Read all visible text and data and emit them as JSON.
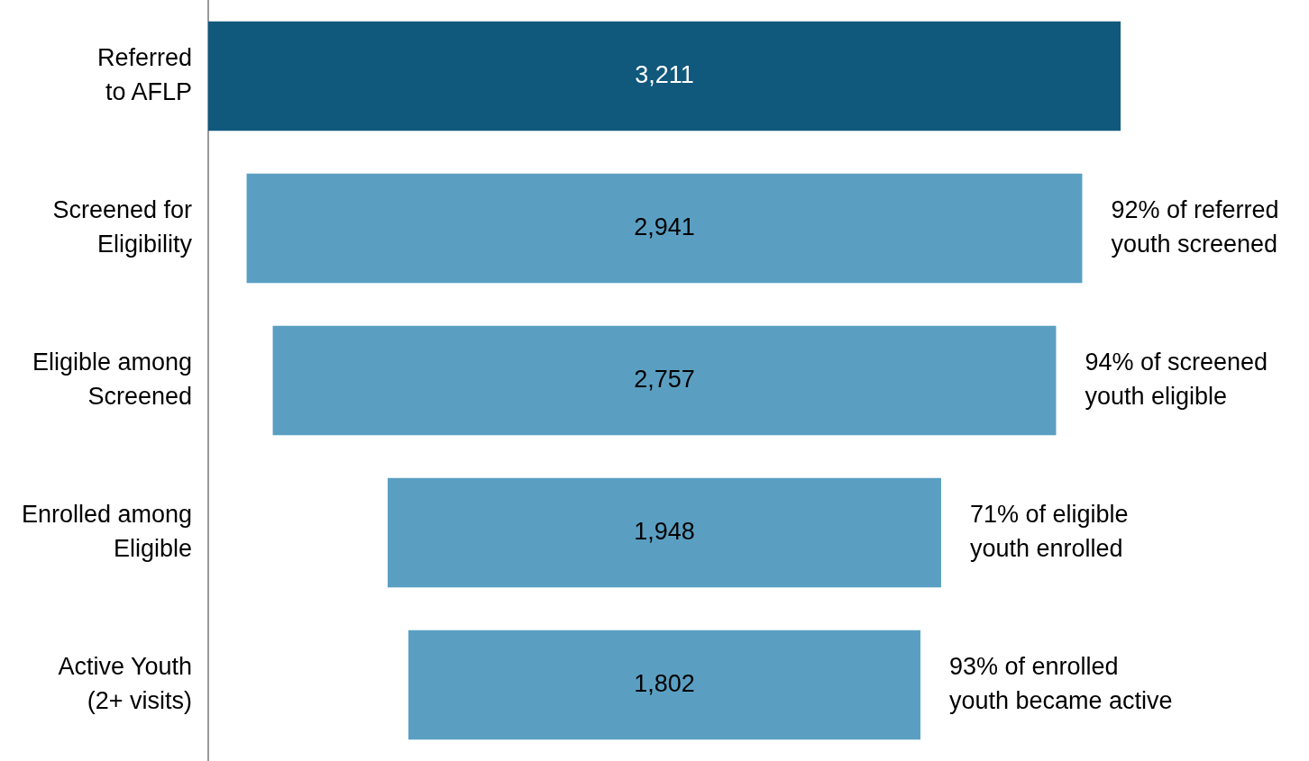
{
  "chart_data": {
    "type": "other",
    "categories": [
      "Referred\nto AFLP",
      "Screened for\nEligibility",
      "Eligible among\nScreened",
      "Enrolled among\nEligible",
      "Active Youth\n(2+ visits)"
    ],
    "values": [
      3211,
      2941,
      2757,
      1948,
      1802
    ],
    "colors": [
      "#10587c",
      "#5a9fc2",
      "#5a9fc2",
      "#5a9fc2",
      "#5a9fc2"
    ],
    "value_labels": [
      "3,211",
      "2,941",
      "2,757",
      "1,948",
      "1,802"
    ],
    "annotations": [
      {
        "text": "92% of referred\nyouth screened",
        "y": "Screened for\nEligibility"
      },
      {
        "text": "94% of screened\nyouth eligible",
        "y": "Eligible among\nScreened"
      },
      {
        "text": "71% of eligible\nyouth enrolled",
        "y": "Enrolled among\nEligible"
      },
      {
        "text": "93% of enrolled\nyouth became active",
        "y": "Active Youth\n(2+ visits)"
      }
    ]
  }
}
